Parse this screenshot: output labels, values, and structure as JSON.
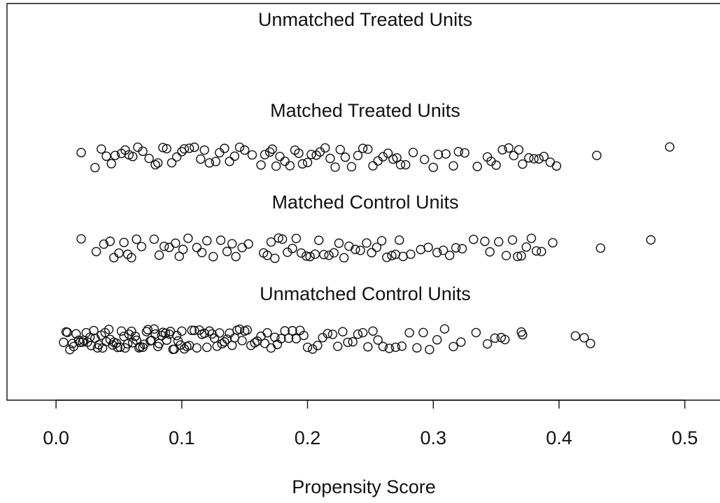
{
  "chart_data": {
    "type": "scatter",
    "xlabel": "Propensity Score",
    "xlim": [
      -0.039,
      0.528
    ],
    "xticks": [
      {
        "value": 0,
        "label": "0.0"
      },
      0.1,
      0.2,
      0.3,
      0.4,
      0.5
    ],
    "groups": [
      {
        "name": "Unmatched Treated Units",
        "x": []
      },
      {
        "name": "Matched Treated Units",
        "x": [
          0.02,
          0.031,
          0.036,
          0.04,
          0.044,
          0.047,
          0.052,
          0.055,
          0.058,
          0.061,
          0.065,
          0.069,
          0.074,
          0.079,
          0.081,
          0.085,
          0.088,
          0.092,
          0.096,
          0.1,
          0.102,
          0.106,
          0.11,
          0.115,
          0.118,
          0.122,
          0.127,
          0.13,
          0.134,
          0.138,
          0.142,
          0.146,
          0.15,
          0.156,
          0.163,
          0.166,
          0.17,
          0.172,
          0.175,
          0.178,
          0.182,
          0.186,
          0.19,
          0.193,
          0.196,
          0.2,
          0.203,
          0.207,
          0.21,
          0.214,
          0.218,
          0.222,
          0.226,
          0.23,
          0.235,
          0.24,
          0.244,
          0.248,
          0.252,
          0.256,
          0.26,
          0.264,
          0.268,
          0.271,
          0.274,
          0.278,
          0.284,
          0.293,
          0.3,
          0.304,
          0.31,
          0.316,
          0.32,
          0.325,
          0.335,
          0.343,
          0.346,
          0.35,
          0.355,
          0.36,
          0.364,
          0.368,
          0.371,
          0.376,
          0.38,
          0.384,
          0.388,
          0.393,
          0.398,
          0.43,
          0.488
        ]
      },
      {
        "name": "Matched Control Units",
        "x": [
          0.02,
          0.032,
          0.038,
          0.043,
          0.046,
          0.05,
          0.054,
          0.057,
          0.06,
          0.064,
          0.068,
          0.078,
          0.082,
          0.086,
          0.09,
          0.095,
          0.098,
          0.101,
          0.105,
          0.112,
          0.116,
          0.12,
          0.125,
          0.131,
          0.136,
          0.14,
          0.143,
          0.148,
          0.153,
          0.165,
          0.168,
          0.171,
          0.174,
          0.177,
          0.18,
          0.184,
          0.188,
          0.191,
          0.195,
          0.199,
          0.202,
          0.206,
          0.209,
          0.213,
          0.217,
          0.221,
          0.225,
          0.229,
          0.233,
          0.238,
          0.242,
          0.247,
          0.251,
          0.255,
          0.259,
          0.263,
          0.267,
          0.27,
          0.273,
          0.276,
          0.282,
          0.29,
          0.296,
          0.303,
          0.308,
          0.313,
          0.318,
          0.323,
          0.332,
          0.341,
          0.345,
          0.352,
          0.358,
          0.363,
          0.367,
          0.37,
          0.374,
          0.378,
          0.382,
          0.386,
          0.395,
          0.433,
          0.473
        ]
      },
      {
        "name": "Unmatched Control Units",
        "x": [
          0.006,
          0.008,
          0.009,
          0.011,
          0.013,
          0.014,
          0.016,
          0.018,
          0.019,
          0.021,
          0.022,
          0.024,
          0.025,
          0.027,
          0.028,
          0.03,
          0.031,
          0.033,
          0.034,
          0.036,
          0.037,
          0.039,
          0.04,
          0.042,
          0.043,
          0.045,
          0.046,
          0.048,
          0.049,
          0.051,
          0.052,
          0.054,
          0.055,
          0.057,
          0.058,
          0.06,
          0.061,
          0.063,
          0.064,
          0.066,
          0.067,
          0.069,
          0.07,
          0.072,
          0.073,
          0.075,
          0.076,
          0.078,
          0.079,
          0.081,
          0.082,
          0.084,
          0.085,
          0.087,
          0.088,
          0.09,
          0.091,
          0.093,
          0.094,
          0.096,
          0.097,
          0.099,
          0.1,
          0.102,
          0.104,
          0.106,
          0.108,
          0.11,
          0.112,
          0.114,
          0.116,
          0.118,
          0.12,
          0.122,
          0.124,
          0.126,
          0.128,
          0.13,
          0.132,
          0.134,
          0.136,
          0.138,
          0.14,
          0.142,
          0.144,
          0.146,
          0.148,
          0.15,
          0.152,
          0.155,
          0.158,
          0.16,
          0.163,
          0.166,
          0.168,
          0.171,
          0.174,
          0.176,
          0.179,
          0.182,
          0.185,
          0.188,
          0.191,
          0.194,
          0.197,
          0.2,
          0.204,
          0.208,
          0.212,
          0.216,
          0.22,
          0.224,
          0.228,
          0.232,
          0.236,
          0.24,
          0.244,
          0.248,
          0.252,
          0.256,
          0.26,
          0.265,
          0.27,
          0.275,
          0.281,
          0.287,
          0.292,
          0.297,
          0.303,
          0.309,
          0.316,
          0.322,
          0.334,
          0.343,
          0.349,
          0.354,
          0.357,
          0.37,
          0.371,
          0.413,
          0.42,
          0.425
        ]
      }
    ]
  }
}
